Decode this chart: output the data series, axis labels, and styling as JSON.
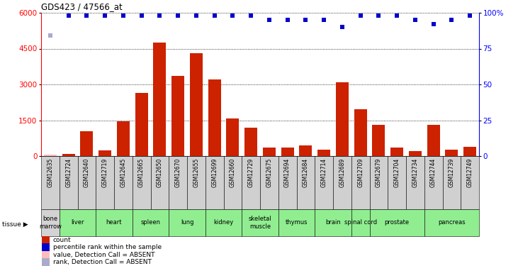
{
  "title": "GDS423 / 47566_at",
  "samples": [
    "GSM12635",
    "GSM12724",
    "GSM12640",
    "GSM12719",
    "GSM12645",
    "GSM12665",
    "GSM12650",
    "GSM12670",
    "GSM12655",
    "GSM12699",
    "GSM12660",
    "GSM12729",
    "GSM12675",
    "GSM12694",
    "GSM12684",
    "GSM12714",
    "GSM12689",
    "GSM12709",
    "GSM12679",
    "GSM12704",
    "GSM12734",
    "GSM12744",
    "GSM12739",
    "GSM12749"
  ],
  "bar_values": [
    60,
    90,
    1050,
    250,
    1450,
    2650,
    4750,
    3350,
    4300,
    3200,
    1560,
    1200,
    350,
    370,
    450,
    280,
    3080,
    1950,
    1300,
    360,
    210,
    1300,
    280,
    380
  ],
  "absent_bar": [
    1,
    0,
    0,
    0,
    0,
    0,
    0,
    0,
    0,
    0,
    0,
    0,
    0,
    0,
    0,
    0,
    0,
    0,
    0,
    0,
    0,
    0,
    0,
    0
  ],
  "dot_values_pct": [
    84,
    98,
    98,
    98,
    98,
    98,
    98,
    98,
    98,
    98,
    98,
    98,
    95,
    95,
    95,
    95,
    90,
    98,
    98,
    98,
    95,
    92,
    95,
    98
  ],
  "absent_dot": [
    1,
    0,
    0,
    0,
    0,
    0,
    0,
    0,
    0,
    0,
    0,
    0,
    0,
    0,
    0,
    0,
    0,
    0,
    0,
    0,
    0,
    0,
    0,
    0
  ],
  "tissues": [
    {
      "label": "bone\nmarrow",
      "start": 0,
      "end": 1,
      "color": "#d3d3d3"
    },
    {
      "label": "liver",
      "start": 1,
      "end": 3,
      "color": "#90ee90"
    },
    {
      "label": "heart",
      "start": 3,
      "end": 5,
      "color": "#90ee90"
    },
    {
      "label": "spleen",
      "start": 5,
      "end": 7,
      "color": "#90ee90"
    },
    {
      "label": "lung",
      "start": 7,
      "end": 9,
      "color": "#90ee90"
    },
    {
      "label": "kidney",
      "start": 9,
      "end": 11,
      "color": "#90ee90"
    },
    {
      "label": "skeletal\nmuscle",
      "start": 11,
      "end": 13,
      "color": "#90ee90"
    },
    {
      "label": "thymus",
      "start": 13,
      "end": 15,
      "color": "#90ee90"
    },
    {
      "label": "brain",
      "start": 15,
      "end": 17,
      "color": "#90ee90"
    },
    {
      "label": "spinal cord",
      "start": 17,
      "end": 18,
      "color": "#90ee90"
    },
    {
      "label": "prostate",
      "start": 18,
      "end": 21,
      "color": "#90ee90"
    },
    {
      "label": "pancreas",
      "start": 21,
      "end": 24,
      "color": "#90ee90"
    }
  ],
  "ylim_left": [
    0,
    6000
  ],
  "ylim_right": [
    0,
    100
  ],
  "yticks_left": [
    0,
    1500,
    3000,
    4500,
    6000
  ],
  "yticks_right": [
    0,
    25,
    50,
    75,
    100
  ],
  "bar_color": "#cc2200",
  "bar_absent_color": "#ffbbbb",
  "dot_color": "#0000cc",
  "dot_absent_color": "#aaaacc",
  "sample_bg": "#d0d0d0",
  "bg_color": "#ffffff",
  "legend": [
    {
      "color": "#cc2200",
      "marker": "s",
      "label": "count"
    },
    {
      "color": "#0000cc",
      "marker": "s",
      "label": "percentile rank within the sample"
    },
    {
      "color": "#ffbbbb",
      "marker": "s",
      "label": "value, Detection Call = ABSENT"
    },
    {
      "color": "#aaaacc",
      "marker": "s",
      "label": "rank, Detection Call = ABSENT"
    }
  ]
}
